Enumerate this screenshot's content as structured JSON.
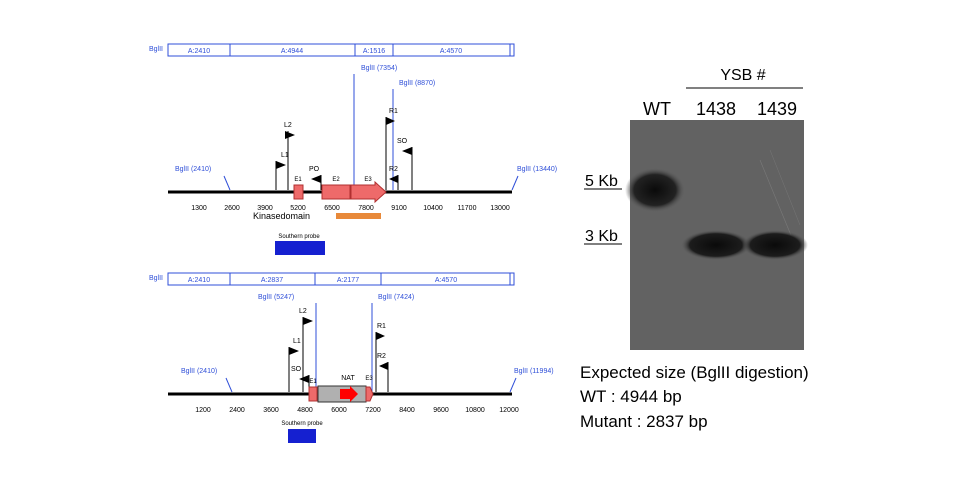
{
  "colors": {
    "label_blue": "#2f4fd8",
    "exon": "#ee6a6a",
    "exon_stroke": "#b03030",
    "kinase": "#e8893a",
    "probe": "#1520d0",
    "nat_box": "#b0b0b0",
    "nat_arrow": "#ff0000"
  },
  "wt": {
    "fragments": [
      "A:2410",
      "A:4944",
      "A:1516",
      "A:4570"
    ],
    "sites": {
      "left": "BglII (2410)",
      "s7354": "BglII (7354)",
      "s8870": "BglII (8870)",
      "right": "BglII (13440)"
    },
    "primers": {
      "l1": "L1",
      "l2": "L2",
      "po": "PO",
      "r1": "R1",
      "r2": "R2",
      "so": "SO"
    },
    "features": {
      "e1": "E1",
      "e2": "E2",
      "e3": "E3"
    },
    "ticks": [
      "1300",
      "2600",
      "3900",
      "5200",
      "6500",
      "7800",
      "9100",
      "10400",
      "11700",
      "13000"
    ],
    "kinase_label": "Kinasedomain",
    "probe_label": "Southern probe"
  },
  "mut": {
    "fragments": [
      "A:2410",
      "A:2837",
      "A:2177",
      "A:4570"
    ],
    "sites": {
      "left": "BglII (2410)",
      "s5247": "BglII (5247)",
      "s7424": "BglII (7424)",
      "right": "BglII (11994)"
    },
    "primers": {
      "l1": "L1",
      "l2": "L2",
      "so": "SO",
      "r1": "R1",
      "r2": "R2"
    },
    "features": {
      "e1": "E1",
      "nat": "NAT",
      "e3": "E3"
    },
    "ticks": [
      "1200",
      "2400",
      "3600",
      "4800",
      "6000",
      "7200",
      "8400",
      "9600",
      "10800",
      "12000"
    ],
    "probe_label": "Southern probe"
  },
  "blot": {
    "group_label": "YSB #",
    "lanes": [
      "WT",
      "1438",
      "1439"
    ],
    "markers": [
      "5 Kb",
      "3 Kb"
    ]
  },
  "expected": {
    "title": "Expected size (BglII digestion)",
    "wt": "WT : 4944 bp",
    "mutant": "Mutant : 2837 bp"
  }
}
